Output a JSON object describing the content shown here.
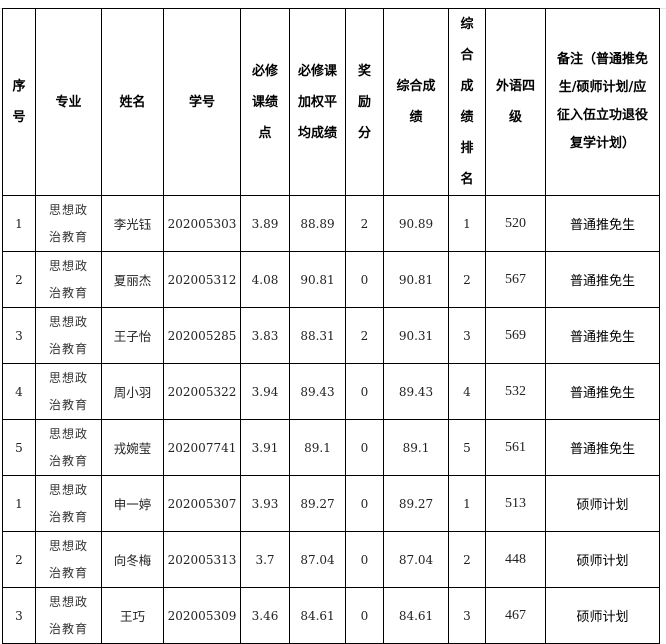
{
  "headers": [
    "序号",
    "专业",
    "姓名",
    "学号",
    "必修课绩点",
    "必修课加权平均成绩",
    "奖励分",
    "综合成绩",
    "综合成绩排名",
    "外语四级",
    "备注（普通推免生/硕师计划/应征入伍立功退役复学计划）"
  ],
  "rows": [
    {
      "seq": "1",
      "major": "思想政治教育",
      "name": "李光钰",
      "id": "202005303",
      "gpa": "3.89",
      "avg": "88.89",
      "bonus": "2",
      "total": "90.89",
      "rank": "1",
      "cet": "520",
      "note": "普通推免生"
    },
    {
      "seq": "2",
      "major": "思想政治教育",
      "name": "夏丽杰",
      "id": "202005312",
      "gpa": "4.08",
      "avg": "90.81",
      "bonus": "0",
      "total": "90.81",
      "rank": "2",
      "cet": "567",
      "note": "普通推免生"
    },
    {
      "seq": "3",
      "major": "思想政治教育",
      "name": "王子怡",
      "id": "202005285",
      "gpa": "3.83",
      "avg": "88.31",
      "bonus": "2",
      "total": "90.31",
      "rank": "3",
      "cet": "569",
      "note": "普通推免生"
    },
    {
      "seq": "4",
      "major": "思想政治教育",
      "name": "周小羽",
      "id": "202005322",
      "gpa": "3.94",
      "avg": "89.43",
      "bonus": "0",
      "total": "89.43",
      "rank": "4",
      "cet": "532",
      "note": "普通推免生"
    },
    {
      "seq": "5",
      "major": "思想政治教育",
      "name": "戎婉莹",
      "id": "202007741",
      "gpa": "3.91",
      "avg": "89.1",
      "bonus": "0",
      "total": "89.1",
      "rank": "5",
      "cet": "561",
      "note": "普通推免生"
    },
    {
      "seq": "1",
      "major": "思想政治教育",
      "name": "申一婷",
      "id": "202005307",
      "gpa": "3.93",
      "avg": "89.27",
      "bonus": "0",
      "total": "89.27",
      "rank": "1",
      "cet": "513",
      "note": "硕师计划"
    },
    {
      "seq": "2",
      "major": "思想政治教育",
      "name": "向冬梅",
      "id": "202005313",
      "gpa": "3.7",
      "avg": "87.04",
      "bonus": "0",
      "total": "87.04",
      "rank": "2",
      "cet": "448",
      "note": "硕师计划"
    },
    {
      "seq": "3",
      "major": "思想政治教育",
      "name": "王巧",
      "id": "202005309",
      "gpa": "3.46",
      "avg": "84.61",
      "bonus": "0",
      "total": "84.61",
      "rank": "3",
      "cet": "467",
      "note": "硕师计划"
    }
  ]
}
